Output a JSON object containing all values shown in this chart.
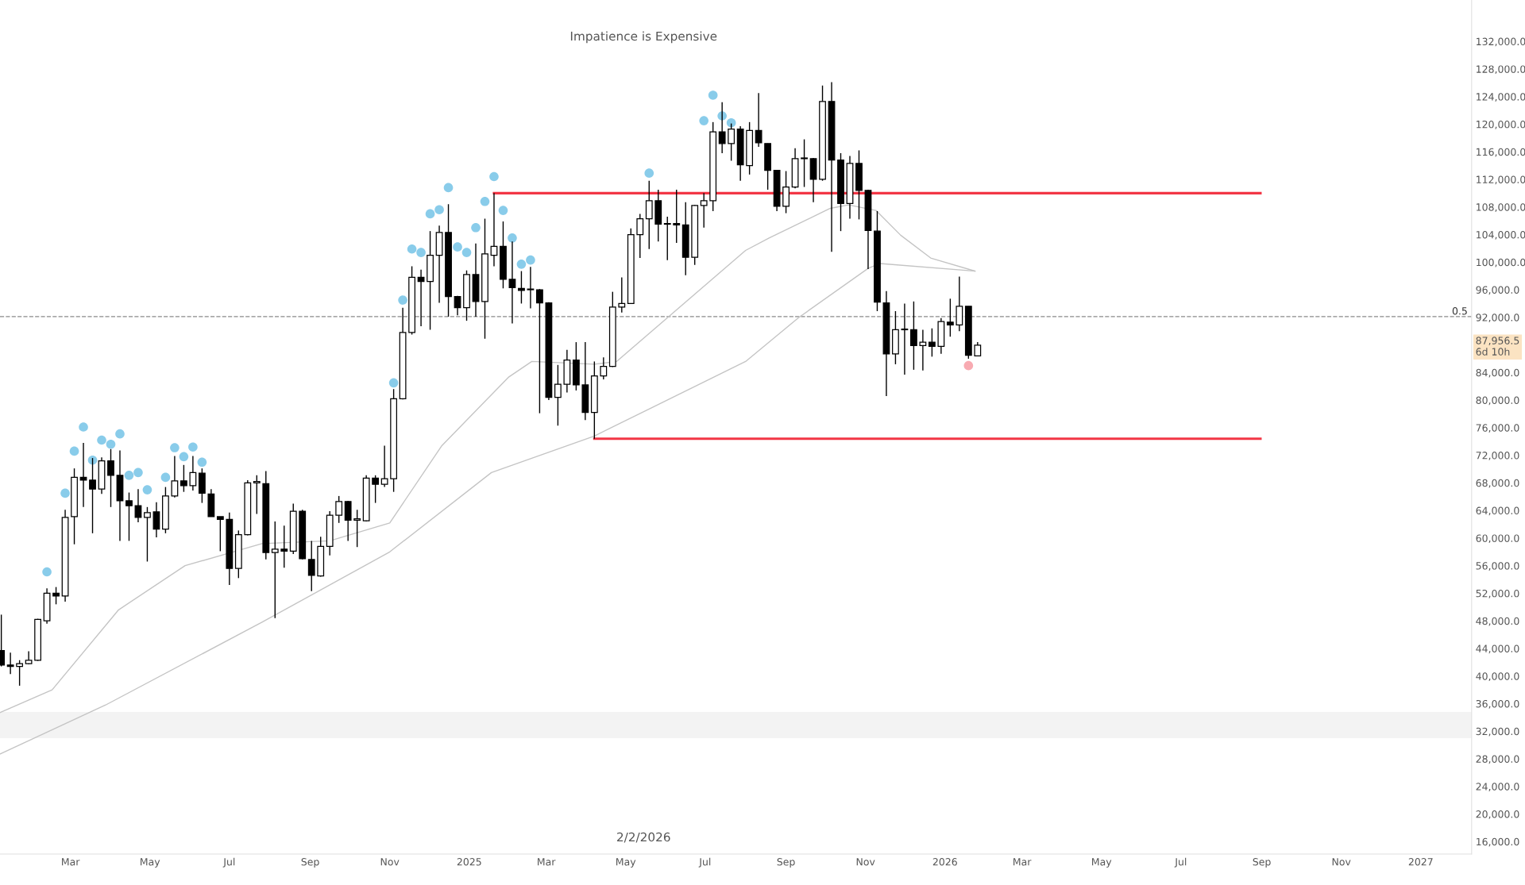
{
  "chart_data": {
    "type": "candlestick",
    "title": "Impatience is Expensive",
    "annotations": [
      "2/2/2026",
      {
        "text": "0.5",
        "x": "2027-02-06",
        "y": 92100
      }
    ],
    "x": [
      "2024-01-08",
      "2024-01-15",
      "2024-01-22",
      "2024-01-29",
      "2024-02-05",
      "2024-02-12",
      "2024-02-19",
      "2024-02-26",
      "2024-03-04",
      "2024-03-11",
      "2024-03-18",
      "2024-03-25",
      "2024-04-01",
      "2024-04-08",
      "2024-04-15",
      "2024-04-22",
      "2024-04-29",
      "2024-05-06",
      "2024-05-13",
      "2024-05-20",
      "2024-05-27",
      "2024-06-03",
      "2024-06-10",
      "2024-06-17",
      "2024-06-24",
      "2024-07-01",
      "2024-07-08",
      "2024-07-15",
      "2024-07-22",
      "2024-07-29",
      "2024-08-05",
      "2024-08-12",
      "2024-08-19",
      "2024-08-26",
      "2024-09-02",
      "2024-09-09",
      "2024-09-16",
      "2024-09-23",
      "2024-09-30",
      "2024-10-07",
      "2024-10-14",
      "2024-10-21",
      "2024-10-28",
      "2024-11-04",
      "2024-11-11",
      "2024-11-18",
      "2024-11-25",
      "2024-12-02",
      "2024-12-09",
      "2024-12-16",
      "2024-12-23",
      "2024-12-30",
      "2025-01-06",
      "2025-01-13",
      "2025-01-20",
      "2025-01-27",
      "2025-02-03",
      "2025-02-10",
      "2025-02-17",
      "2025-02-24",
      "2025-03-03",
      "2025-03-10",
      "2025-03-17",
      "2025-03-24",
      "2025-03-31",
      "2025-04-07",
      "2025-04-14",
      "2025-04-21",
      "2025-04-28",
      "2025-05-05",
      "2025-05-12",
      "2025-05-19",
      "2025-05-26",
      "2025-06-02",
      "2025-06-09",
      "2025-06-16",
      "2025-06-23",
      "2025-06-30",
      "2025-07-07",
      "2025-07-14",
      "2025-07-21",
      "2025-07-28",
      "2025-08-04",
      "2025-08-11",
      "2025-08-18",
      "2025-08-25",
      "2025-09-01",
      "2025-09-08",
      "2025-09-15",
      "2025-09-22",
      "2025-09-29",
      "2025-10-06",
      "2025-10-13",
      "2025-10-20",
      "2025-10-27",
      "2025-11-03",
      "2025-11-10",
      "2025-11-17",
      "2025-11-24",
      "2025-12-01",
      "2025-12-08",
      "2025-12-15",
      "2025-12-22",
      "2025-12-29",
      "2026-01-05",
      "2026-01-12",
      "2026-01-19",
      "2026-01-26"
    ],
    "ohlc": [
      [
        43700,
        48900,
        41400,
        41600
      ],
      [
        41600,
        43400,
        40300,
        41400
      ],
      [
        41400,
        42300,
        38600,
        41800
      ],
      [
        41800,
        43600,
        41700,
        42300
      ],
      [
        42300,
        48300,
        42200,
        48200
      ],
      [
        48000,
        52700,
        47600,
        52000
      ],
      [
        52000,
        52900,
        50400,
        51600
      ],
      [
        51600,
        64100,
        50800,
        63000
      ],
      [
        63100,
        70100,
        59100,
        68800
      ],
      [
        68800,
        73800,
        64500,
        68400
      ],
      [
        68400,
        71600,
        60700,
        67100
      ],
      [
        67100,
        71700,
        66400,
        71200
      ],
      [
        71200,
        72900,
        64500,
        69100
      ],
      [
        69100,
        72700,
        59600,
        65400
      ],
      [
        65400,
        66600,
        59600,
        64700
      ],
      [
        64700,
        67100,
        62300,
        63000
      ],
      [
        63000,
        64500,
        56600,
        63700
      ],
      [
        63800,
        65200,
        60100,
        61300
      ],
      [
        61300,
        67400,
        60700,
        66100
      ],
      [
        66100,
        71900,
        65900,
        68300
      ],
      [
        68300,
        70600,
        66700,
        67600
      ],
      [
        67600,
        71900,
        66900,
        69500
      ],
      [
        69400,
        70100,
        65100,
        66500
      ],
      [
        66400,
        67100,
        63100,
        63100
      ],
      [
        63100,
        63100,
        58100,
        62700
      ],
      [
        62700,
        63700,
        53200,
        55600
      ],
      [
        55600,
        61100,
        54200,
        60500
      ],
      [
        60500,
        68400,
        60400,
        68000
      ],
      [
        68000,
        69100,
        63500,
        68200
      ],
      [
        67900,
        69700,
        56900,
        57900
      ],
      [
        57900,
        62400,
        48400,
        58400
      ],
      [
        58400,
        61800,
        55700,
        58100
      ],
      [
        58100,
        65000,
        57700,
        63900
      ],
      [
        63900,
        64100,
        56900,
        57000
      ],
      [
        56900,
        59600,
        52300,
        54600
      ],
      [
        54500,
        60200,
        54400,
        58800
      ],
      [
        58800,
        63900,
        57500,
        63300
      ],
      [
        63300,
        66100,
        62200,
        65300
      ],
      [
        65300,
        65400,
        59600,
        62600
      ],
      [
        62600,
        64100,
        58700,
        62800
      ],
      [
        62500,
        69100,
        62400,
        68700
      ],
      [
        68700,
        69100,
        65100,
        67800
      ],
      [
        67800,
        73400,
        67400,
        68600
      ],
      [
        68600,
        81600,
        66700,
        80200
      ],
      [
        80200,
        93400,
        80100,
        89800
      ],
      [
        89800,
        99400,
        89500,
        97800
      ],
      [
        97800,
        98900,
        90700,
        97200
      ],
      [
        97200,
        104500,
        90200,
        101000
      ],
      [
        101000,
        105300,
        94100,
        104300
      ],
      [
        104300,
        108400,
        92100,
        95000
      ],
      [
        95000,
        95100,
        92300,
        93400
      ],
      [
        93400,
        98800,
        91500,
        98200
      ],
      [
        98200,
        102700,
        92100,
        94300
      ],
      [
        94300,
        106300,
        88900,
        101200
      ],
      [
        101000,
        110000,
        99400,
        102300
      ],
      [
        102300,
        105900,
        96200,
        97500
      ],
      [
        97500,
        103000,
        91100,
        96300
      ],
      [
        96200,
        98700,
        94000,
        95900
      ],
      [
        96000,
        99300,
        93300,
        96100
      ],
      [
        96000,
        96100,
        78100,
        94100
      ],
      [
        94100,
        94200,
        80000,
        80400
      ],
      [
        80400,
        85100,
        76300,
        82300
      ],
      [
        82300,
        87300,
        81100,
        85800
      ],
      [
        85800,
        88400,
        81400,
        82200
      ],
      [
        82200,
        88400,
        77100,
        78200
      ],
      [
        78200,
        85600,
        74400,
        83500
      ],
      [
        83500,
        86200,
        83000,
        84900
      ],
      [
        84900,
        95700,
        84800,
        93500
      ],
      [
        93500,
        97800,
        92700,
        94000
      ],
      [
        94000,
        104900,
        94000,
        104000
      ],
      [
        104000,
        107000,
        100600,
        106300
      ],
      [
        106300,
        111800,
        101900,
        108900
      ],
      [
        108900,
        110500,
        103000,
        105500
      ],
      [
        105500,
        106600,
        100300,
        105600
      ],
      [
        105600,
        110500,
        102800,
        105400
      ],
      [
        105400,
        108700,
        98100,
        100700
      ],
      [
        100700,
        108300,
        99600,
        108200
      ],
      [
        108200,
        110000,
        105000,
        108900
      ],
      [
        108900,
        120300,
        107400,
        118900
      ],
      [
        118900,
        123200,
        115800,
        117200
      ],
      [
        117200,
        120100,
        114700,
        119300
      ],
      [
        119300,
        119700,
        111800,
        114100
      ],
      [
        114000,
        120300,
        112700,
        119100
      ],
      [
        119100,
        124500,
        116700,
        117300
      ],
      [
        117200,
        117200,
        110500,
        113300
      ],
      [
        113300,
        113300,
        107400,
        108100
      ],
      [
        108100,
        113200,
        107100,
        110900
      ],
      [
        110900,
        116500,
        110700,
        115000
      ],
      [
        115000,
        117800,
        110900,
        115100
      ],
      [
        115000,
        115100,
        108700,
        112000
      ],
      [
        112000,
        125600,
        111800,
        123300
      ],
      [
        123300,
        126100,
        101500,
        114800
      ],
      [
        114800,
        115800,
        104500,
        108500
      ],
      [
        108500,
        115400,
        106300,
        114300
      ],
      [
        114300,
        116200,
        106200,
        110400
      ],
      [
        110400,
        110500,
        99000,
        104600
      ],
      [
        104500,
        107400,
        92900,
        94200
      ],
      [
        94100,
        95800,
        80600,
        86700
      ],
      [
        86700,
        92900,
        85200,
        90200
      ],
      [
        90300,
        94000,
        83700,
        90200
      ],
      [
        90200,
        94300,
        84400,
        87900
      ],
      [
        87900,
        90200,
        84300,
        88400
      ],
      [
        88400,
        90400,
        86300,
        87800
      ],
      [
        87800,
        91900,
        86700,
        91400
      ],
      [
        91300,
        94700,
        89200,
        90900
      ],
      [
        90900,
        97900,
        90000,
        93600
      ],
      [
        93600,
        93600,
        86000,
        86500
      ],
      [
        86400,
        88400,
        86400,
        87956.5
      ]
    ],
    "series": [
      {
        "type": "line",
        "color": "#c4c4c4",
        "x": [
          "2024-01-07",
          "2024-02-16",
          "2024-04-07",
          "2024-05-28",
          "2024-07-26",
          "2024-09-16",
          "2024-11-01",
          "2024-12-11",
          "2025-01-31",
          "2025-02-18",
          "2025-04-07",
          "2025-04-24",
          "2025-08-01",
          "2025-08-19",
          "2025-10-05",
          "2025-10-19",
          "2025-11-09",
          "2025-11-28",
          "2025-12-21",
          "2026-01-24"
        ],
        "values": [
          34700,
          38000,
          49600,
          56000,
          59200,
          59600,
          62200,
          73400,
          83300,
          85600,
          85200,
          85600,
          101700,
          103500,
          107800,
          108300,
          107500,
          103900,
          100600,
          98700
        ]
      },
      {
        "type": "line",
        "color": "#c4c4c4",
        "x": [
          "2024-01-07",
          "2024-03-28",
          "2024-07-26",
          "2024-11-01",
          "2025-01-18",
          "2025-04-07",
          "2025-08-01",
          "2025-09-11",
          "2025-11-03",
          "2025-11-12",
          "2026-01-24"
        ],
        "values": [
          28700,
          35800,
          47800,
          58000,
          69500,
          74800,
          85600,
          92000,
          99100,
          99800,
          98700
        ]
      },
      {
        "type": "line",
        "color": "#f23645",
        "x": [
          "2025-01-20",
          "2026-08-31"
        ],
        "values": [
          110000,
          110000
        ]
      },
      {
        "type": "line",
        "color": "#f23645",
        "x": [
          "2025-04-07",
          "2026-08-31"
        ],
        "values": [
          74400,
          74400
        ]
      },
      {
        "type": "scatter",
        "color": "#7cc6e8",
        "marker": "circle",
        "x": [
          "2024-02-12",
          "2024-02-26",
          "2024-03-04",
          "2024-03-11",
          "2024-03-18",
          "2024-03-25",
          "2024-04-01",
          "2024-04-08",
          "2024-04-15",
          "2024-04-22",
          "2024-04-29",
          "2024-05-13",
          "2024-05-20",
          "2024-05-27",
          "2024-06-03",
          "2024-06-10",
          "2024-11-04",
          "2024-11-11",
          "2024-11-18",
          "2024-11-25",
          "2024-12-02",
          "2024-12-09",
          "2024-12-16",
          "2024-12-23",
          "2024-12-30",
          "2025-01-06",
          "2025-01-13",
          "2025-01-20",
          "2025-01-27",
          "2025-02-03",
          "2025-02-10",
          "2025-02-17",
          "2025-05-19",
          "2025-06-30",
          "2025-07-07",
          "2025-07-14",
          "2025-07-21"
        ],
        "values": [
          55100,
          66500,
          72600,
          76100,
          71300,
          74200,
          73600,
          75100,
          69100,
          69500,
          67000,
          68800,
          73100,
          71800,
          73200,
          71000,
          82500,
          94500,
          101900,
          101400,
          107000,
          107600,
          110800,
          102200,
          101400,
          105000,
          108800,
          112400,
          107500,
          103500,
          99700,
          100300,
          112900,
          120500,
          124200,
          121200,
          120200
        ]
      },
      {
        "type": "scatter",
        "color": "#f7a1a8",
        "marker": "circle",
        "x": [
          "2026-01-19"
        ],
        "values": [
          85000
        ]
      }
    ],
    "ref_lines": [
      {
        "axis": "y",
        "value": 92100,
        "color": "#8a8a8a",
        "line_style": "dashed"
      }
    ],
    "bands": [
      {
        "axis": "y",
        "from": 31000,
        "to": 34800,
        "color": "#f3f3f3"
      }
    ],
    "xlim": [
      "2024-01-07",
      "2027-02-09"
    ],
    "xticks": [
      {
        "value": "2024-03-01",
        "label": "Mar"
      },
      {
        "value": "2024-05-01",
        "label": "May"
      },
      {
        "value": "2024-07-01",
        "label": "Jul"
      },
      {
        "value": "2024-09-01",
        "label": "Sep"
      },
      {
        "value": "2024-11-01",
        "label": "Nov"
      },
      {
        "value": "2025-01-01",
        "label": "2025"
      },
      {
        "value": "2025-03-01",
        "label": "Mar"
      },
      {
        "value": "2025-05-01",
        "label": "May"
      },
      {
        "value": "2025-07-01",
        "label": "Jul"
      },
      {
        "value": "2025-09-01",
        "label": "Sep"
      },
      {
        "value": "2025-11-01",
        "label": "Nov"
      },
      {
        "value": "2026-01-01",
        "label": "2026"
      },
      {
        "value": "2026-03-01",
        "label": "Mar"
      },
      {
        "value": "2026-05-01",
        "label": "May"
      },
      {
        "value": "2026-07-01",
        "label": "Jul"
      },
      {
        "value": "2026-09-01",
        "label": "Sep"
      },
      {
        "value": "2026-11-01",
        "label": "Nov"
      },
      {
        "value": "2027-01-01",
        "label": "2027"
      }
    ],
    "ylim": [
      14200,
      138000
    ],
    "yticks": [
      {
        "value": 16000,
        "label": "16,000.0"
      },
      {
        "value": 20000,
        "label": "20,000.0"
      },
      {
        "value": 24000,
        "label": "24,000.0"
      },
      {
        "value": 28000,
        "label": "28,000.0"
      },
      {
        "value": 32000,
        "label": "32,000.0"
      },
      {
        "value": 36000,
        "label": "36,000.0"
      },
      {
        "value": 40000,
        "label": "40,000.0"
      },
      {
        "value": 44000,
        "label": "44,000.0"
      },
      {
        "value": 48000,
        "label": "48,000.0"
      },
      {
        "value": 52000,
        "label": "52,000.0"
      },
      {
        "value": 56000,
        "label": "56,000.0"
      },
      {
        "value": 60000,
        "label": "60,000.0"
      },
      {
        "value": 64000,
        "label": "64,000.0"
      },
      {
        "value": 68000,
        "label": "68,000.0"
      },
      {
        "value": 72000,
        "label": "72,000.0"
      },
      {
        "value": 76000,
        "label": "76,000.0"
      },
      {
        "value": 80000,
        "label": "80,000.0"
      },
      {
        "value": 84000,
        "label": "84,000.0"
      },
      {
        "value": 87956.5,
        "label": "87,956.5\n6d 10h"
      },
      {
        "value": 92000,
        "label": "92,000.0"
      },
      {
        "value": 96000,
        "label": "96,000.0"
      },
      {
        "value": 100000,
        "label": "100,000.0"
      },
      {
        "value": 104000,
        "label": "104,000.0"
      },
      {
        "value": 108000,
        "label": "108,000.0"
      },
      {
        "value": 112000,
        "label": "112,000.0"
      },
      {
        "value": 116000,
        "label": "116,000.0"
      },
      {
        "value": 120000,
        "label": "120,000.0"
      },
      {
        "value": 124000,
        "label": "124,000.0"
      },
      {
        "value": 128000,
        "label": "128,000.0"
      },
      {
        "value": 132000,
        "label": "132,000.0"
      }
    ],
    "grid": false
  }
}
